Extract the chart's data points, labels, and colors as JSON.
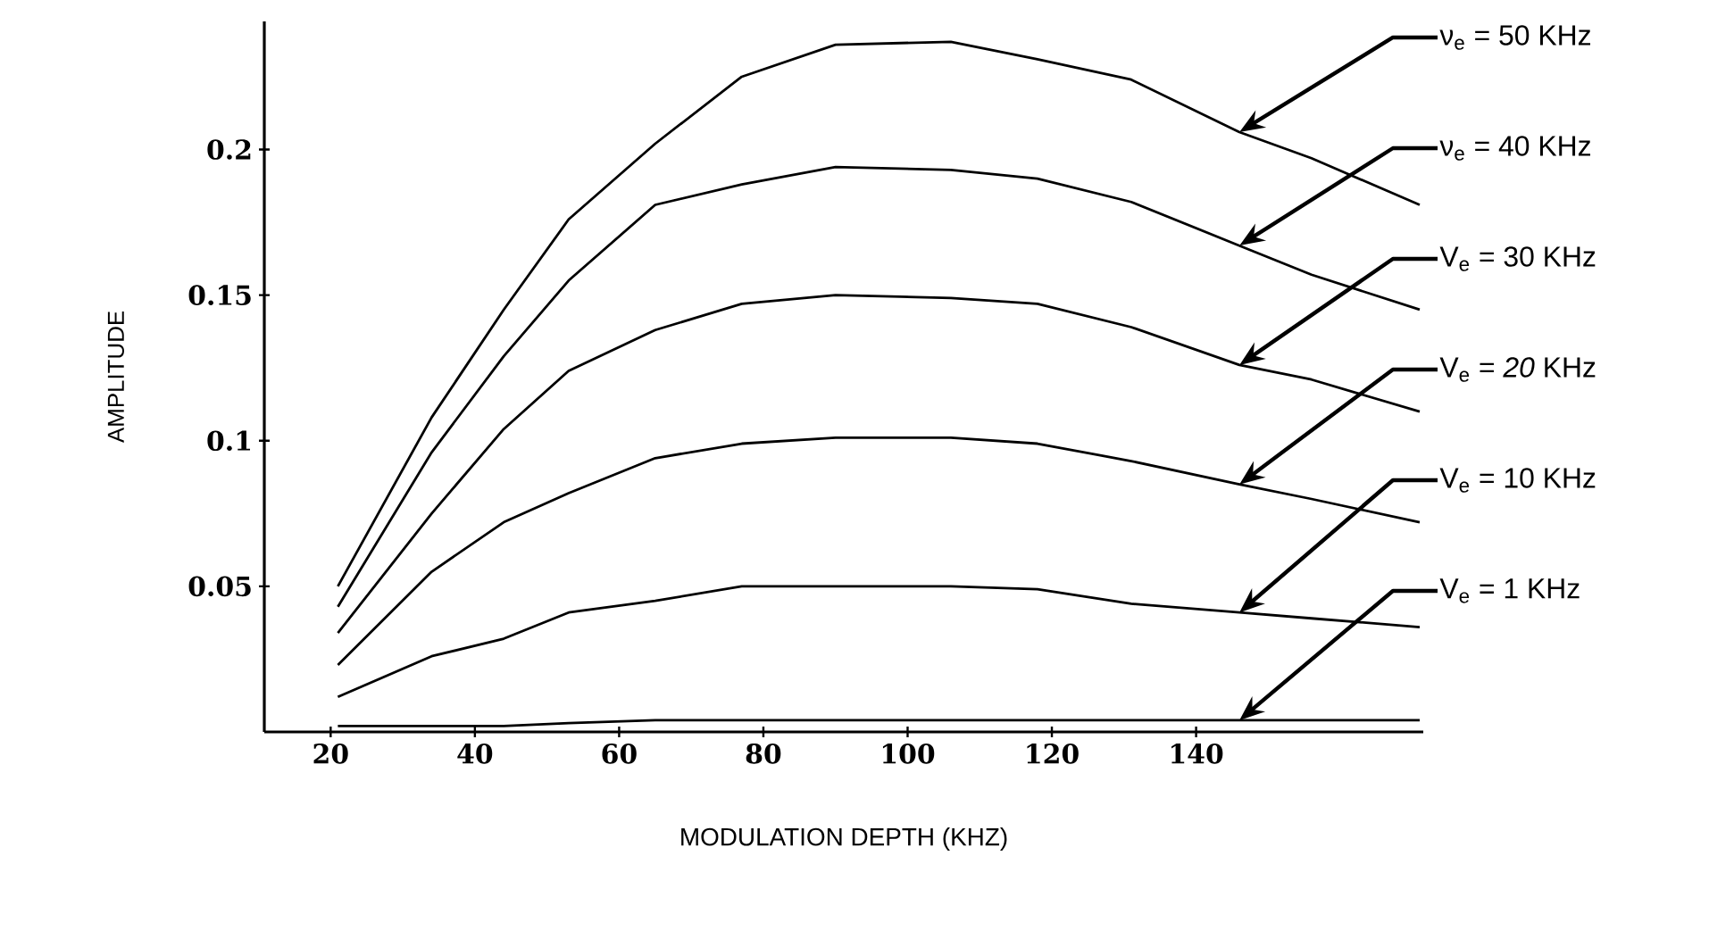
{
  "chart_data": {
    "type": "line",
    "xlabel": "MODULATION DEPTH (KHZ)",
    "ylabel": "AMPLITUDE",
    "x": [
      21,
      34,
      44,
      53,
      65,
      77,
      90,
      106,
      118,
      131,
      146,
      156,
      171
    ],
    "series": [
      {
        "name": "ν$_{e}$ = 50 KHz",
        "color": "#000000",
        "values": [
          0.05,
          0.108,
          0.145,
          0.176,
          0.202,
          0.225,
          0.236,
          0.237,
          0.231,
          0.224,
          0.206,
          0.197,
          0.181
        ]
      },
      {
        "name": "ν$_{e}$ = 40 KHz",
        "color": "#000000",
        "values": [
          0.043,
          0.096,
          0.129,
          0.155,
          0.181,
          0.188,
          0.194,
          0.193,
          0.19,
          0.182,
          0.167,
          0.157,
          0.145
        ]
      },
      {
        "name": "V$_{e}$ = 30 KHz",
        "color": "#000000",
        "values": [
          0.034,
          0.075,
          0.104,
          0.124,
          0.138,
          0.147,
          0.15,
          0.149,
          0.147,
          0.139,
          0.126,
          0.121,
          0.11
        ]
      },
      {
        "name": "V$_{e}$ = *20* KHz",
        "color": "#000000",
        "values": [
          0.023,
          0.055,
          0.072,
          0.082,
          0.094,
          0.099,
          0.101,
          0.101,
          0.099,
          0.093,
          0.085,
          0.08,
          0.072
        ]
      },
      {
        "name": "V$_{e}$ = 10 KHz",
        "color": "#000000",
        "values": [
          0.012,
          0.026,
          0.032,
          0.041,
          0.045,
          0.05,
          0.05,
          0.05,
          0.049,
          0.044,
          0.041,
          0.039,
          0.036
        ]
      },
      {
        "name": "V$_{e}$ = 1 KHz",
        "color": "#000000",
        "values": [
          0.002,
          0.002,
          0.002,
          0.003,
          0.004,
          0.004,
          0.004,
          0.004,
          0.004,
          0.004,
          0.004,
          0.004,
          0.004
        ]
      }
    ],
    "xlim": [
      10.8,
      171.5
    ],
    "ylim": [
      0,
      0.244
    ],
    "xticks": [
      20,
      40,
      60,
      80,
      100,
      120,
      140
    ],
    "yticks": [
      0.05,
      0.1,
      0.15,
      0.2
    ],
    "grid": false,
    "legend": false,
    "marker": "none",
    "line_style": "solid"
  }
}
